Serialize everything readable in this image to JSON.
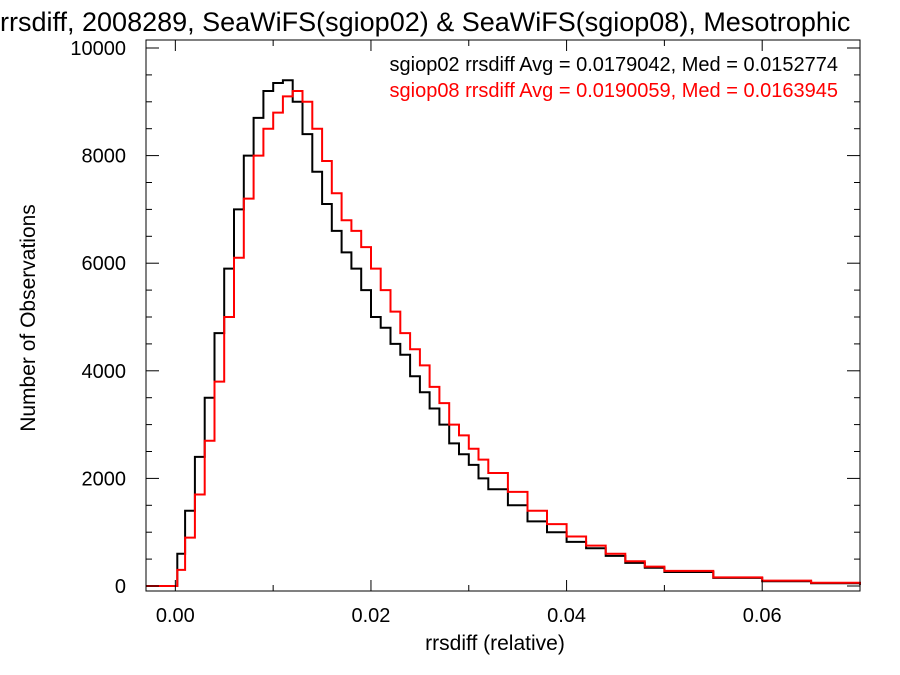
{
  "chart_data": {
    "type": "line",
    "title": "rrsdiff, 2008289, SeaWiFS(sgiop02) & SeaWiFS(sgiop08), Mesotrophic",
    "xlabel": "rrsdiff (relative)",
    "ylabel": "Number of Observations",
    "xlim": [
      -0.003,
      0.07
    ],
    "ylim": [
      0,
      10000
    ],
    "x_ticks": [
      0.0,
      0.02,
      0.04,
      0.06
    ],
    "x_tick_labels": [
      "0.00",
      "0.02",
      "0.04",
      "0.06"
    ],
    "y_ticks": [
      0,
      2000,
      4000,
      6000,
      8000,
      10000
    ],
    "y_tick_labels": [
      "0",
      "2000",
      "4000",
      "6000",
      "8000",
      "10000"
    ],
    "grid": false,
    "legend_position": "top-right",
    "step": "histogram",
    "series": [
      {
        "name": "sgiop02 rrsdiff Avg = 0.0179042, Med = 0.0152774",
        "color": "#000000",
        "x": [
          -0.003,
          0.0,
          0.0002,
          0.001,
          0.002,
          0.003,
          0.004,
          0.005,
          0.006,
          0.007,
          0.008,
          0.009,
          0.01,
          0.011,
          0.012,
          0.013,
          0.014,
          0.015,
          0.016,
          0.017,
          0.018,
          0.019,
          0.02,
          0.021,
          0.022,
          0.023,
          0.024,
          0.025,
          0.026,
          0.027,
          0.028,
          0.029,
          0.03,
          0.031,
          0.032,
          0.034,
          0.036,
          0.038,
          0.04,
          0.042,
          0.044,
          0.046,
          0.048,
          0.05,
          0.055,
          0.06,
          0.065,
          0.07
        ],
        "y": [
          0,
          0,
          600,
          1400,
          2400,
          3500,
          4700,
          5900,
          7000,
          8000,
          8700,
          9200,
          9350,
          9400,
          9000,
          8400,
          7700,
          7100,
          6600,
          6200,
          5900,
          5500,
          5000,
          4800,
          4500,
          4300,
          3900,
          3600,
          3300,
          3000,
          2650,
          2450,
          2250,
          2000,
          1800,
          1500,
          1200,
          1000,
          820,
          700,
          560,
          430,
          340,
          260,
          150,
          90,
          50,
          20
        ]
      },
      {
        "name": "sgiop08 rrsdiff Avg = 0.0190059, Med = 0.0163945",
        "color": "#ff0000",
        "x": [
          -0.003,
          0.0,
          0.0002,
          0.001,
          0.002,
          0.003,
          0.004,
          0.005,
          0.006,
          0.007,
          0.008,
          0.009,
          0.01,
          0.011,
          0.012,
          0.013,
          0.014,
          0.015,
          0.016,
          0.017,
          0.018,
          0.019,
          0.02,
          0.021,
          0.022,
          0.023,
          0.024,
          0.025,
          0.026,
          0.027,
          0.028,
          0.029,
          0.03,
          0.031,
          0.032,
          0.034,
          0.036,
          0.038,
          0.04,
          0.042,
          0.044,
          0.046,
          0.048,
          0.05,
          0.055,
          0.06,
          0.065,
          0.07
        ],
        "y": [
          0,
          0,
          300,
          900,
          1700,
          2700,
          3800,
          5000,
          6100,
          7200,
          8000,
          8500,
          8800,
          9100,
          9200,
          9000,
          8500,
          7900,
          7300,
          6800,
          6600,
          6300,
          5900,
          5500,
          5100,
          4700,
          4400,
          4100,
          3700,
          3400,
          3000,
          2800,
          2550,
          2350,
          2100,
          1750,
          1400,
          1150,
          920,
          750,
          600,
          460,
          360,
          280,
          160,
          100,
          60,
          30
        ]
      }
    ]
  }
}
